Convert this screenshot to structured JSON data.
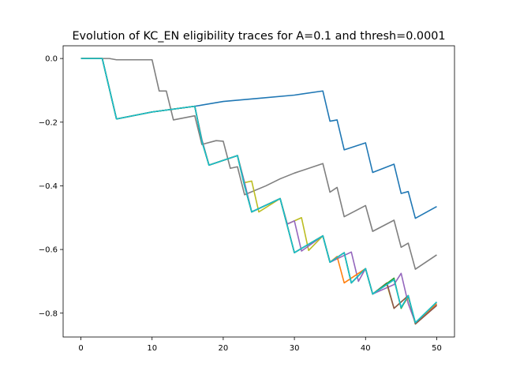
{
  "chart_data": {
    "type": "line",
    "title": "Evolution of KC_EN eligibility traces for A=0.1 and thresh=0.0001",
    "xlabel": "",
    "ylabel": "",
    "xlim": [
      -2.5,
      52.5
    ],
    "ylim": [
      -0.875,
      0.04
    ],
    "xticks": [
      0,
      10,
      20,
      30,
      40,
      50
    ],
    "xtick_labels": [
      "0",
      "10",
      "20",
      "30",
      "40",
      "50"
    ],
    "yticks": [
      0.0,
      -0.2,
      -0.4,
      -0.6,
      -0.8
    ],
    "ytick_labels": [
      "0.0",
      "−0.2",
      "−0.4",
      "−0.6",
      "−0.8"
    ],
    "grid": false,
    "legend": "none",
    "series": [
      {
        "color": "#7f7f7f",
        "points": [
          [
            0,
            0
          ],
          [
            4,
            0
          ],
          [
            5,
            -0.004
          ],
          [
            9,
            -0.004
          ],
          [
            10,
            -0.004
          ],
          [
            11,
            -0.102
          ],
          [
            12,
            -0.102
          ],
          [
            13,
            -0.193
          ],
          [
            16,
            -0.18
          ],
          [
            17,
            -0.27
          ],
          [
            19,
            -0.258
          ],
          [
            20,
            -0.26
          ],
          [
            21,
            -0.345
          ],
          [
            22,
            -0.34
          ],
          [
            23,
            -0.428
          ],
          [
            26,
            -0.4
          ],
          [
            28,
            -0.378
          ],
          [
            30,
            -0.36
          ],
          [
            34,
            -0.33
          ],
          [
            35,
            -0.42
          ],
          [
            36,
            -0.405
          ],
          [
            37,
            -0.497
          ],
          [
            40,
            -0.462
          ],
          [
            41,
            -0.543
          ],
          [
            44,
            -0.508
          ],
          [
            45,
            -0.593
          ],
          [
            46,
            -0.58
          ],
          [
            47,
            -0.662
          ],
          [
            50,
            -0.617
          ]
        ]
      },
      {
        "color": "#1f77b4",
        "points": [
          [
            0,
            0
          ],
          [
            3,
            0
          ],
          [
            5,
            -0.19
          ],
          [
            10,
            -0.168
          ],
          [
            16,
            -0.15
          ],
          [
            20,
            -0.135
          ],
          [
            25,
            -0.125
          ],
          [
            30,
            -0.115
          ],
          [
            34,
            -0.102
          ],
          [
            35,
            -0.197
          ],
          [
            36,
            -0.193
          ],
          [
            37,
            -0.287
          ],
          [
            40,
            -0.265
          ],
          [
            41,
            -0.358
          ],
          [
            44,
            -0.332
          ],
          [
            45,
            -0.424
          ],
          [
            46,
            -0.418
          ],
          [
            47,
            -0.502
          ],
          [
            50,
            -0.465
          ]
        ]
      },
      {
        "color": "#bcbd22",
        "points": [
          [
            0,
            0
          ],
          [
            3,
            0
          ],
          [
            5,
            -0.19
          ],
          [
            10,
            -0.168
          ],
          [
            16,
            -0.15
          ],
          [
            17,
            -0.255
          ],
          [
            18,
            -0.335
          ],
          [
            22,
            -0.305
          ],
          [
            23,
            -0.39
          ],
          [
            24,
            -0.385
          ],
          [
            25,
            -0.482
          ],
          [
            28,
            -0.44
          ],
          [
            29,
            -0.52
          ],
          [
            31,
            -0.5
          ],
          [
            32,
            -0.603
          ],
          [
            34,
            -0.557
          ],
          [
            35,
            -0.64
          ],
          [
            37,
            -0.61
          ],
          [
            38,
            -0.705
          ],
          [
            40,
            -0.66
          ],
          [
            41,
            -0.74
          ],
          [
            43,
            -0.71
          ],
          [
            44,
            -0.785
          ],
          [
            46,
            -0.745
          ],
          [
            47,
            -0.834
          ],
          [
            50,
            -0.775
          ]
        ]
      },
      {
        "color": "#9467bd",
        "points": [
          [
            0,
            0
          ],
          [
            3,
            0
          ],
          [
            5,
            -0.19
          ],
          [
            10,
            -0.168
          ],
          [
            16,
            -0.15
          ],
          [
            17,
            -0.255
          ],
          [
            18,
            -0.335
          ],
          [
            22,
            -0.305
          ],
          [
            23,
            -0.39
          ],
          [
            24,
            -0.482
          ],
          [
            28,
            -0.44
          ],
          [
            29,
            -0.52
          ],
          [
            30,
            -0.51
          ],
          [
            31,
            -0.605
          ],
          [
            34,
            -0.557
          ],
          [
            35,
            -0.64
          ],
          [
            38,
            -0.608
          ],
          [
            39,
            -0.7
          ],
          [
            40,
            -0.66
          ],
          [
            41,
            -0.74
          ],
          [
            44,
            -0.71
          ],
          [
            45,
            -0.675
          ],
          [
            46,
            -0.77
          ],
          [
            47,
            -0.83
          ],
          [
            50,
            -0.772
          ]
        ]
      },
      {
        "color": "#ff7f0e",
        "points": [
          [
            0,
            0
          ],
          [
            3,
            0
          ],
          [
            5,
            -0.19
          ],
          [
            10,
            -0.168
          ],
          [
            16,
            -0.15
          ],
          [
            17,
            -0.26
          ],
          [
            18,
            -0.335
          ],
          [
            22,
            -0.305
          ],
          [
            23,
            -0.4
          ],
          [
            24,
            -0.482
          ],
          [
            28,
            -0.44
          ],
          [
            30,
            -0.61
          ],
          [
            34,
            -0.557
          ],
          [
            35,
            -0.64
          ],
          [
            36,
            -0.622
          ],
          [
            37,
            -0.705
          ],
          [
            40,
            -0.66
          ],
          [
            41,
            -0.74
          ],
          [
            44,
            -0.695
          ],
          [
            45,
            -0.782
          ],
          [
            46,
            -0.75
          ],
          [
            47,
            -0.83
          ],
          [
            50,
            -0.77
          ]
        ]
      },
      {
        "color": "#8c564b",
        "points": [
          [
            0,
            0
          ],
          [
            3,
            0
          ],
          [
            5,
            -0.19
          ],
          [
            10,
            -0.168
          ],
          [
            16,
            -0.15
          ],
          [
            17,
            -0.26
          ],
          [
            18,
            -0.335
          ],
          [
            22,
            -0.305
          ],
          [
            23,
            -0.4
          ],
          [
            24,
            -0.482
          ],
          [
            28,
            -0.44
          ],
          [
            30,
            -0.61
          ],
          [
            34,
            -0.557
          ],
          [
            35,
            -0.64
          ],
          [
            37,
            -0.61
          ],
          [
            38,
            -0.705
          ],
          [
            40,
            -0.66
          ],
          [
            41,
            -0.74
          ],
          [
            43,
            -0.705
          ],
          [
            44,
            -0.785
          ],
          [
            46,
            -0.745
          ],
          [
            47,
            -0.834
          ],
          [
            50,
            -0.776
          ]
        ]
      },
      {
        "color": "#2ca02c",
        "points": [
          [
            0,
            0
          ],
          [
            3,
            0
          ],
          [
            5,
            -0.19
          ],
          [
            10,
            -0.168
          ],
          [
            16,
            -0.15
          ],
          [
            17,
            -0.26
          ],
          [
            18,
            -0.335
          ],
          [
            22,
            -0.305
          ],
          [
            23,
            -0.4
          ],
          [
            24,
            -0.482
          ],
          [
            28,
            -0.44
          ],
          [
            30,
            -0.61
          ],
          [
            34,
            -0.557
          ],
          [
            35,
            -0.64
          ],
          [
            37,
            -0.61
          ],
          [
            38,
            -0.705
          ],
          [
            40,
            -0.66
          ],
          [
            41,
            -0.74
          ],
          [
            44,
            -0.69
          ],
          [
            45,
            -0.785
          ],
          [
            46,
            -0.745
          ],
          [
            47,
            -0.83
          ],
          [
            50,
            -0.765
          ]
        ]
      },
      {
        "color": "#17becf",
        "points": [
          [
            0,
            0
          ],
          [
            3,
            0
          ],
          [
            5,
            -0.19
          ],
          [
            10,
            -0.168
          ],
          [
            16,
            -0.15
          ],
          [
            17,
            -0.26
          ],
          [
            18,
            -0.335
          ],
          [
            22,
            -0.305
          ],
          [
            23,
            -0.4
          ],
          [
            24,
            -0.482
          ],
          [
            28,
            -0.44
          ],
          [
            30,
            -0.61
          ],
          [
            34,
            -0.557
          ],
          [
            35,
            -0.64
          ],
          [
            37,
            -0.61
          ],
          [
            38,
            -0.705
          ],
          [
            40,
            -0.66
          ],
          [
            41,
            -0.74
          ],
          [
            44,
            -0.695
          ],
          [
            45,
            -0.782
          ],
          [
            46,
            -0.745
          ],
          [
            47,
            -0.83
          ],
          [
            50,
            -0.765
          ]
        ]
      }
    ]
  }
}
